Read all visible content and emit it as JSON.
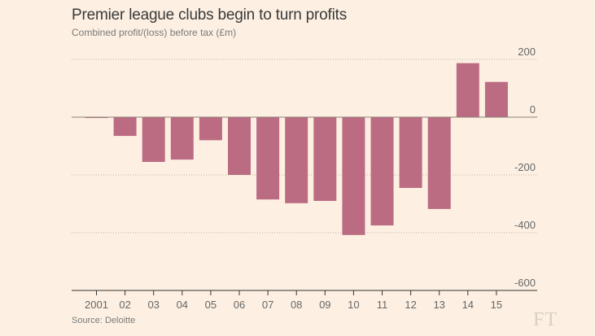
{
  "chart_data": {
    "type": "bar",
    "title": "Premier league clubs begin to turn profits",
    "subtitle": "Combined profit/(loss) before tax (£m)",
    "source": "Source: Deloitte",
    "brand": "FT",
    "categories": [
      "2001",
      "02",
      "03",
      "04",
      "05",
      "06",
      "07",
      "08",
      "09",
      "10",
      "11",
      "12",
      "13",
      "14",
      "15"
    ],
    "values": [
      -3,
      -65,
      -155,
      -147,
      -80,
      -200,
      -285,
      -298,
      -290,
      -408,
      -375,
      -245,
      -318,
      187,
      122
    ],
    "ylim": [
      -600,
      200
    ],
    "yticks": [
      200,
      0,
      -200,
      -400,
      -600
    ],
    "ytick_labels": [
      "200",
      "0",
      "-200",
      "-400",
      "-600"
    ],
    "xlabel": "",
    "ylabel": "",
    "grid": true,
    "colors": {
      "bar": "#bc6c82",
      "background": "#fdf0e2"
    }
  }
}
